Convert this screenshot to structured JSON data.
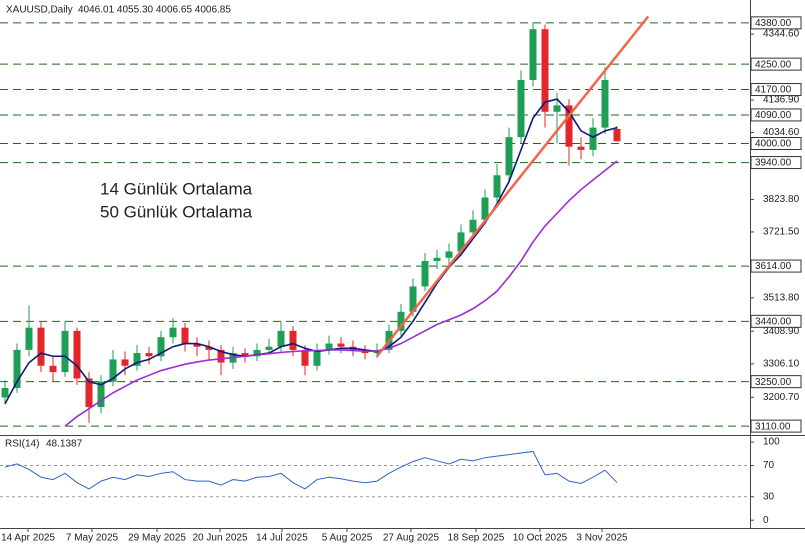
{
  "chart_data": {
    "type": "candlestick",
    "header": "XAUUSD,Daily",
    "ohlc_text": "4046.01 4055.30 4006.65 4006.85",
    "ylim": [
      3082,
      4452
    ],
    "yticks": [
      {
        "value": 4344.6,
        "label": "4344.60"
      },
      {
        "value": 4136.9,
        "label": "4136.90"
      },
      {
        "value": 4034.6,
        "label": "4034.60"
      },
      {
        "value": 3823.8,
        "label": "3823.80"
      },
      {
        "value": 3721.5,
        "label": "3721.50"
      },
      {
        "value": 3513.8,
        "label": "3513.80"
      },
      {
        "value": 3408.9,
        "label": "3408.90"
      },
      {
        "value": 3306.1,
        "label": "3306.10"
      },
      {
        "value": 3200.7,
        "label": "3200.70"
      }
    ],
    "levels": [
      {
        "value": 4380,
        "label": "4380.00"
      },
      {
        "value": 4250,
        "label": "4250.00"
      },
      {
        "value": 4170,
        "label": "4170.00"
      },
      {
        "value": 4090,
        "label": "4090.00"
      },
      {
        "value": 4000,
        "label": "4000.00"
      },
      {
        "value": 3940,
        "label": "3940.00"
      },
      {
        "value": 3614,
        "label": "3614.00"
      },
      {
        "value": 3440,
        "label": "3440.00"
      },
      {
        "value": 3250,
        "label": "3250.00"
      },
      {
        "value": 3110,
        "label": "3110.00"
      }
    ],
    "level_color": "#1b6b1b",
    "xticks": [
      {
        "value": 1.92,
        "label": "14 Apr 2025"
      },
      {
        "value": 7.25,
        "label": "7 May 2025"
      },
      {
        "value": 12.67,
        "label": "29 May 2025"
      },
      {
        "value": 17.92,
        "label": "20 Jun 2025"
      },
      {
        "value": 23.08,
        "label": "14 Jul 2025"
      },
      {
        "value": 28.5,
        "label": "5 Aug 2025"
      },
      {
        "value": 33.83,
        "label": "27 Aug 2025"
      },
      {
        "value": 39.25,
        "label": "18 Sep 2025"
      },
      {
        "value": 44.58,
        "label": "10 Oct 2025"
      },
      {
        "value": 49.75,
        "label": "3 Nov 2025"
      }
    ],
    "candles": {
      "up_color": "#1f9e55",
      "down_color": "#e3262b",
      "open": [
        3200,
        3230,
        3350,
        3420,
        3300,
        3280,
        3410,
        3260,
        3170,
        3250,
        3320,
        3300,
        3340,
        3330,
        3390,
        3420,
        3370,
        3360,
        3350,
        3310,
        3340,
        3330,
        3350,
        3360,
        3410,
        3350,
        3300,
        3350,
        3370,
        3360,
        3350,
        3340,
        3350,
        3410,
        3470,
        3550,
        3630,
        3640,
        3660,
        3720,
        3760,
        3830,
        3900,
        4020,
        4200,
        4360,
        4100,
        4120,
        3990,
        3980,
        4050,
        4046.01
      ],
      "high": [
        3255,
        3370,
        3490,
        3440,
        3330,
        3440,
        3420,
        3280,
        3270,
        3350,
        3345,
        3365,
        3360,
        3410,
        3450,
        3435,
        3390,
        3380,
        3365,
        3360,
        3355,
        3370,
        3385,
        3440,
        3425,
        3365,
        3370,
        3395,
        3390,
        3380,
        3365,
        3370,
        3430,
        3495,
        3575,
        3655,
        3665,
        3685,
        3745,
        3790,
        3855,
        3935,
        4050,
        4230,
        4381,
        4375,
        4160,
        4140,
        4020,
        4080,
        4240,
        4055.3
      ],
      "low": [
        3180,
        3215,
        3330,
        3280,
        3250,
        3265,
        3240,
        3120,
        3150,
        3235,
        3270,
        3285,
        3305,
        3315,
        3370,
        3345,
        3330,
        3320,
        3270,
        3290,
        3310,
        3315,
        3335,
        3345,
        3330,
        3270,
        3285,
        3335,
        3340,
        3330,
        3320,
        3325,
        3340,
        3395,
        3455,
        3535,
        3605,
        3615,
        3645,
        3700,
        3745,
        3815,
        3880,
        4000,
        4180,
        4050,
        4000,
        3930,
        3950,
        3960,
        4030,
        4006.65
      ],
      "close": [
        3230,
        3350,
        3420,
        3300,
        3280,
        3410,
        3260,
        3170,
        3250,
        3320,
        3300,
        3340,
        3330,
        3390,
        3420,
        3370,
        3360,
        3350,
        3310,
        3340,
        3330,
        3350,
        3360,
        3410,
        3350,
        3300,
        3350,
        3370,
        3360,
        3350,
        3340,
        3350,
        3410,
        3470,
        3550,
        3630,
        3640,
        3660,
        3720,
        3760,
        3830,
        3900,
        4020,
        4200,
        4360,
        4100,
        4120,
        3990,
        3980,
        4050,
        4200,
        4006.85
      ]
    },
    "series": [
      {
        "name": "14 Günlük Ortalama",
        "color": "#0d1a7a",
        "values": [
          3180,
          3250,
          3310,
          3340,
          3330,
          3330,
          3300,
          3250,
          3240,
          3260,
          3290,
          3310,
          3320,
          3340,
          3360,
          3370,
          3370,
          3360,
          3345,
          3335,
          3330,
          3335,
          3340,
          3360,
          3370,
          3355,
          3345,
          3350,
          3355,
          3355,
          3350,
          3345,
          3360,
          3390,
          3440,
          3500,
          3560,
          3610,
          3650,
          3700,
          3750,
          3810,
          3880,
          3980,
          4080,
          4130,
          4140,
          4100,
          4040,
          4020,
          4040,
          4050
        ]
      },
      {
        "name": "50 Günlük Ortalama",
        "color": "#9a2fd6",
        "values": [
          null,
          null,
          null,
          null,
          null,
          3110,
          3140,
          3165,
          3190,
          3215,
          3235,
          3255,
          3270,
          3285,
          3295,
          3305,
          3312,
          3318,
          3322,
          3326,
          3330,
          3334,
          3338,
          3342,
          3345,
          3347,
          3348,
          3350,
          3350,
          3348,
          3346,
          3346,
          3355,
          3370,
          3390,
          3410,
          3430,
          3445,
          3460,
          3480,
          3505,
          3535,
          3580,
          3630,
          3690,
          3740,
          3780,
          3820,
          3855,
          3885,
          3915,
          3945
        ]
      }
    ],
    "trend_line": {
      "color": "#f0664a",
      "x": [
        31,
        53.6
      ],
      "values": [
        3330,
        4400
      ]
    },
    "rsi": {
      "label": "RSI(14)",
      "color": "#2f64c8",
      "ylim": [
        -10,
        106.5
      ],
      "yticks": [
        100,
        70,
        30,
        0
      ],
      "levels": [
        70,
        30
      ],
      "values": [
        68,
        72,
        65,
        55,
        52,
        60,
        48,
        40,
        50,
        55,
        52,
        58,
        56,
        60,
        62,
        52,
        50,
        50,
        45,
        52,
        50,
        55,
        56,
        60,
        48,
        40,
        52,
        55,
        53,
        50,
        48,
        50,
        60,
        68,
        75,
        80,
        76,
        72,
        78,
        76,
        80,
        82,
        84,
        86,
        88,
        58,
        60,
        50,
        47,
        55,
        64,
        48.1387
      ]
    }
  }
}
